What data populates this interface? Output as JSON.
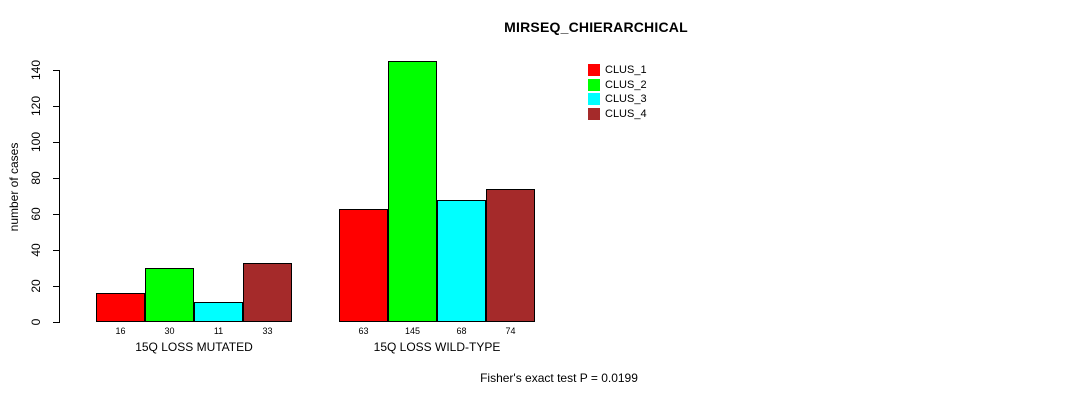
{
  "chart_data": {
    "type": "bar",
    "title": "MIRSEQ_CHIERARCHICAL",
    "ylabel": "number of cases",
    "xlabel": "",
    "categories": [
      "15Q LOSS MUTATED",
      "15Q LOSS WILD-TYPE"
    ],
    "groups": [
      {
        "label": "15Q LOSS MUTATED",
        "values": [
          16,
          30,
          11,
          33
        ]
      },
      {
        "label": "15Q LOSS WILD-TYPE",
        "values": [
          63,
          145,
          68,
          74
        ]
      }
    ],
    "series": [
      {
        "name": "CLUS_1",
        "color": "#ff0000"
      },
      {
        "name": "CLUS_2",
        "color": "#00ff00"
      },
      {
        "name": "CLUS_3",
        "color": "#00ffff"
      },
      {
        "name": "CLUS_4",
        "color": "#a52a2a"
      }
    ],
    "yticks": [
      0,
      20,
      40,
      60,
      80,
      100,
      120,
      140
    ],
    "ylim": [
      0,
      140
    ],
    "bar_value_labels": [
      [
        16,
        30,
        11,
        33
      ],
      [
        63,
        145,
        68,
        74
      ]
    ],
    "annotation": "Fisher's exact test P = 0.0199",
    "legend_position": "top-right",
    "grid": false,
    "background_color": "#ffffff",
    "axis_color": "#000000"
  }
}
